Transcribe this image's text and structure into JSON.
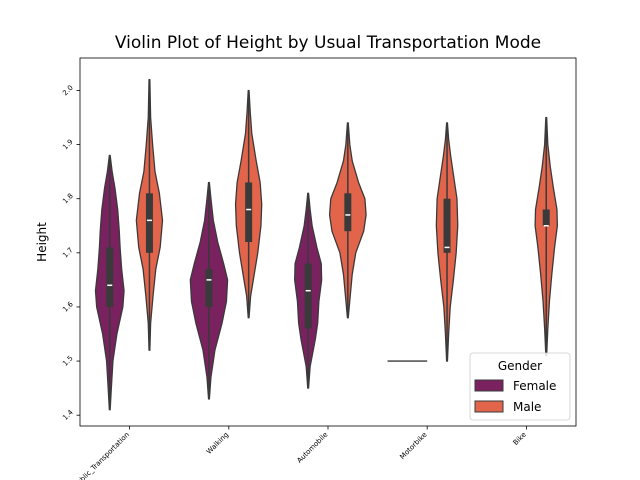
{
  "chart_data": {
    "type": "violin",
    "title": "Violin Plot of Height by Usual Transportation Mode",
    "xlabel": "",
    "ylabel": "Height",
    "ylim": [
      1.38,
      2.06
    ],
    "y_ticks": [
      "1.4",
      "1.5",
      "1.6",
      "1.7",
      "1.8",
      "1.9",
      "2.0"
    ],
    "categories": [
      "Public_Transportation",
      "Walking",
      "Automobile",
      "Motorbike",
      "Bike"
    ],
    "legend": {
      "title": "Gender",
      "position": "lower-right"
    },
    "series": [
      {
        "name": "Female",
        "color": "#7a2160",
        "violins": [
          {
            "category": "Public_Transportation",
            "min": 1.41,
            "max": 1.88,
            "q1": 1.6,
            "median": 1.64,
            "q3": 1.71,
            "profile": [
              [
                1.41,
                0.01
              ],
              [
                1.45,
                0.04
              ],
              [
                1.5,
                0.08
              ],
              [
                1.55,
                0.18
              ],
              [
                1.6,
                0.33
              ],
              [
                1.63,
                0.36
              ],
              [
                1.67,
                0.3
              ],
              [
                1.71,
                0.26
              ],
              [
                1.74,
                0.24
              ],
              [
                1.78,
                0.2
              ],
              [
                1.82,
                0.13
              ],
              [
                1.85,
                0.06
              ],
              [
                1.88,
                0.01
              ]
            ]
          },
          {
            "category": "Walking",
            "min": 1.43,
            "max": 1.83,
            "q1": 1.6,
            "median": 1.65,
            "q3": 1.67,
            "profile": [
              [
                1.43,
                0.01
              ],
              [
                1.47,
                0.05
              ],
              [
                1.52,
                0.15
              ],
              [
                1.57,
                0.33
              ],
              [
                1.61,
                0.44
              ],
              [
                1.65,
                0.47
              ],
              [
                1.68,
                0.37
              ],
              [
                1.72,
                0.22
              ],
              [
                1.76,
                0.11
              ],
              [
                1.8,
                0.05
              ],
              [
                1.83,
                0.01
              ]
            ]
          },
          {
            "category": "Automobile",
            "min": 1.45,
            "max": 1.81,
            "q1": 1.56,
            "median": 1.63,
            "q3": 1.68,
            "profile": [
              [
                1.45,
                0.01
              ],
              [
                1.49,
                0.05
              ],
              [
                1.54,
                0.18
              ],
              [
                1.57,
                0.24
              ],
              [
                1.61,
                0.27
              ],
              [
                1.65,
                0.34
              ],
              [
                1.68,
                0.33
              ],
              [
                1.71,
                0.22
              ],
              [
                1.75,
                0.1
              ],
              [
                1.78,
                0.05
              ],
              [
                1.81,
                0.01
              ]
            ]
          },
          {
            "category": "Motorbike",
            "min": 1.5,
            "max": 1.5,
            "q1": 1.5,
            "median": 1.5,
            "q3": 1.5,
            "degenerate": true
          }
        ]
      },
      {
        "name": "Male",
        "color": "#e2654b",
        "violins": [
          {
            "category": "Public_Transportation",
            "min": 1.52,
            "max": 2.02,
            "q1": 1.7,
            "median": 1.76,
            "q3": 1.81,
            "profile": [
              [
                1.52,
                0.01
              ],
              [
                1.57,
                0.03
              ],
              [
                1.62,
                0.09
              ],
              [
                1.67,
                0.16
              ],
              [
                1.71,
                0.27
              ],
              [
                1.76,
                0.33
              ],
              [
                1.81,
                0.25
              ],
              [
                1.85,
                0.14
              ],
              [
                1.9,
                0.08
              ],
              [
                1.95,
                0.03
              ],
              [
                2.02,
                0.01
              ]
            ]
          },
          {
            "category": "Walking",
            "min": 1.58,
            "max": 2.0,
            "q1": 1.72,
            "median": 1.78,
            "q3": 1.83,
            "profile": [
              [
                1.58,
                0.01
              ],
              [
                1.62,
                0.05
              ],
              [
                1.66,
                0.14
              ],
              [
                1.7,
                0.23
              ],
              [
                1.75,
                0.31
              ],
              [
                1.79,
                0.33
              ],
              [
                1.83,
                0.29
              ],
              [
                1.87,
                0.19
              ],
              [
                1.92,
                0.08
              ],
              [
                1.96,
                0.04
              ],
              [
                2.0,
                0.01
              ]
            ]
          },
          {
            "category": "Automobile",
            "min": 1.58,
            "max": 1.94,
            "q1": 1.74,
            "median": 1.77,
            "q3": 1.81,
            "profile": [
              [
                1.58,
                0.01
              ],
              [
                1.62,
                0.06
              ],
              [
                1.66,
                0.11
              ],
              [
                1.7,
                0.2
              ],
              [
                1.74,
                0.4
              ],
              [
                1.77,
                0.46
              ],
              [
                1.8,
                0.43
              ],
              [
                1.83,
                0.27
              ],
              [
                1.87,
                0.11
              ],
              [
                1.9,
                0.05
              ],
              [
                1.94,
                0.01
              ]
            ]
          },
          {
            "category": "Motorbike",
            "min": 1.5,
            "max": 1.94,
            "q1": 1.7,
            "median": 1.71,
            "q3": 1.8,
            "profile": [
              [
                1.5,
                0.01
              ],
              [
                1.55,
                0.04
              ],
              [
                1.6,
                0.08
              ],
              [
                1.65,
                0.16
              ],
              [
                1.7,
                0.23
              ],
              [
                1.75,
                0.27
              ],
              [
                1.8,
                0.25
              ],
              [
                1.84,
                0.17
              ],
              [
                1.88,
                0.09
              ],
              [
                1.91,
                0.04
              ],
              [
                1.94,
                0.01
              ]
            ]
          },
          {
            "category": "Bike",
            "min": 1.51,
            "max": 1.95,
            "q1": 1.75,
            "median": 1.75,
            "q3": 1.78,
            "profile": [
              [
                1.51,
                0.01
              ],
              [
                1.56,
                0.04
              ],
              [
                1.61,
                0.08
              ],
              [
                1.66,
                0.14
              ],
              [
                1.71,
                0.21
              ],
              [
                1.75,
                0.28
              ],
              [
                1.78,
                0.27
              ],
              [
                1.82,
                0.18
              ],
              [
                1.86,
                0.1
              ],
              [
                1.9,
                0.04
              ],
              [
                1.95,
                0.01
              ]
            ]
          }
        ]
      }
    ]
  }
}
